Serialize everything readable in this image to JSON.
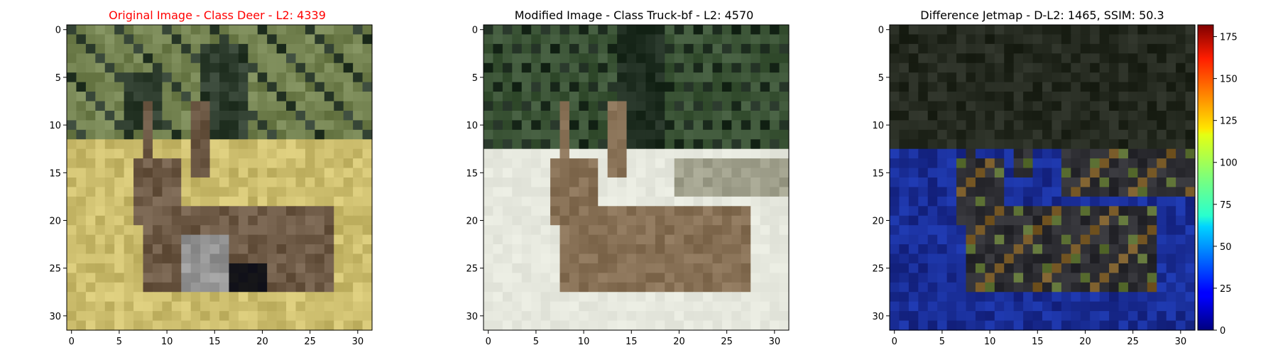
{
  "panels": [
    {
      "title": "Original Image - Class Deer - L2: 4339",
      "title_color": "#ff0000",
      "kind": "photo-original"
    },
    {
      "title": "Modified Image - Class Truck-bf - L2: 4570",
      "title_color": "#000000",
      "kind": "photo-modified"
    },
    {
      "title": "Difference Jetmap - D-L2: 1465, SSIM: 50.3",
      "title_color": "#000000",
      "kind": "jetmap"
    }
  ],
  "chart_data": {
    "type": "heatmap",
    "image_size": [
      32,
      32
    ],
    "x_ticks": [
      "0",
      "5",
      "10",
      "15",
      "20",
      "25",
      "30"
    ],
    "y_ticks": [
      "0",
      "5",
      "10",
      "15",
      "20",
      "25",
      "30"
    ],
    "x_tick_values": [
      0,
      5,
      10,
      15,
      20,
      25,
      30
    ],
    "y_tick_values": [
      0,
      5,
      10,
      15,
      20,
      25,
      30
    ],
    "xlim": [
      -0.5,
      31.5
    ],
    "ylim": [
      31.5,
      -0.5
    ],
    "colorbar": {
      "colormap": "jet",
      "range": [
        0,
        182
      ],
      "ticks": [
        "0",
        "25",
        "50",
        "75",
        "100",
        "125",
        "150",
        "175"
      ],
      "tick_values": [
        0,
        25,
        50,
        75,
        100,
        125,
        150,
        175
      ]
    }
  }
}
